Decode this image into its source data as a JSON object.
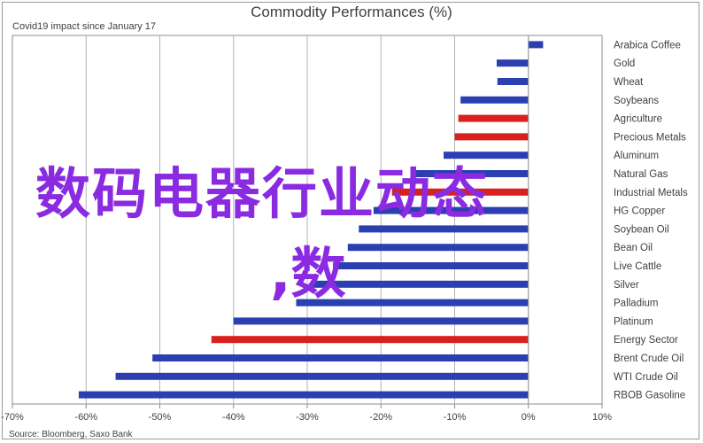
{
  "chart_data": {
    "type": "bar",
    "orientation": "horizontal",
    "title": "Commodity Performances (%)",
    "subtitle": "Covid19 impact since January 17",
    "source": "Source: Bloomberg, Saxo Bank",
    "xlim": [
      -70,
      10
    ],
    "xticks": [
      -70,
      -60,
      -50,
      -40,
      -30,
      -20,
      -10,
      0,
      10
    ],
    "xtick_labels": [
      "-70%",
      "-60%",
      "-50%",
      "-40%",
      "-30%",
      "-20%",
      "-10%",
      "0%",
      "10%"
    ],
    "grid": true,
    "categories": [
      "Arabica Coffee",
      "Gold",
      "Wheat",
      "Soybeans",
      "Agriculture",
      "Precious Metals",
      "Aluminum",
      "Natural Gas",
      "Industrial Metals",
      "HG Copper",
      "Soybean Oil",
      "Bean Oil",
      "Live Cattle",
      "Silver",
      "Palladium",
      "Platinum",
      "Energy Sector",
      "Brent Crude Oil",
      "WTI Crude Oil",
      "RBOB Gasoline"
    ],
    "values": [
      2.0,
      -4.3,
      -4.2,
      -9.2,
      -9.5,
      -10.0,
      -11.5,
      -16.0,
      -18.5,
      -21.0,
      -23.0,
      -24.5,
      -26.5,
      -29.5,
      -31.5,
      -40.0,
      -43.0,
      -51.0,
      -56.0,
      -61.0
    ],
    "colors": [
      "#2b3fb0",
      "#2b3fb0",
      "#2b3fb0",
      "#2b3fb0",
      "#d8201f",
      "#d8201f",
      "#2b3fb0",
      "#2b3fb0",
      "#d8201f",
      "#2b3fb0",
      "#2b3fb0",
      "#2b3fb0",
      "#2b3fb0",
      "#2b3fb0",
      "#2b3fb0",
      "#2b3fb0",
      "#d8201f",
      "#2b3fb0",
      "#2b3fb0",
      "#2b3fb0"
    ]
  },
  "overlay": {
    "line1": "数码电器行业动态",
    "line2": ",数",
    "color": "#8a2be2"
  }
}
